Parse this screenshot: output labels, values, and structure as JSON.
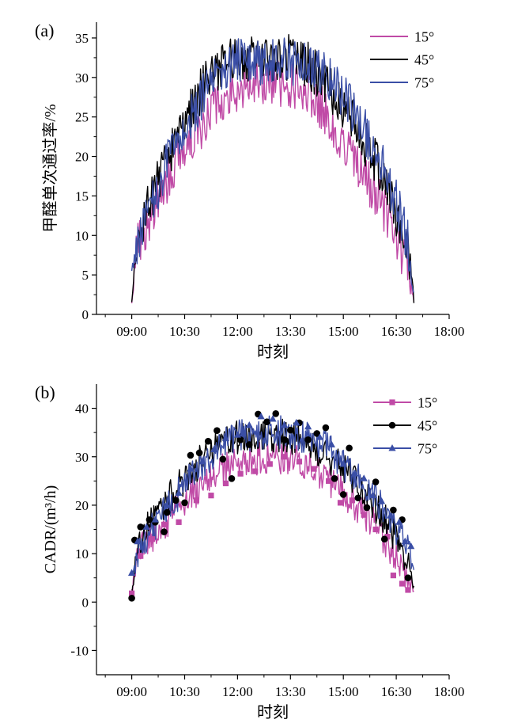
{
  "chart_data": [
    {
      "panel_label": "(a)",
      "type": "line",
      "xlabel": "时刻",
      "ylabel": "甲醛单次通过率/%",
      "xlim": [
        "08:00",
        "18:00"
      ],
      "ylim": [
        0,
        37
      ],
      "xticks": [
        "09:00",
        "10:30",
        "12:00",
        "13:30",
        "15:00",
        "16:30",
        "18:00"
      ],
      "yticks": [
        0,
        5,
        10,
        15,
        20,
        25,
        30,
        35
      ],
      "legend_position": "top-right",
      "grid": false,
      "series": [
        {
          "name": "15°",
          "color": "#c04aa6",
          "marker": "none",
          "noise": 3.0,
          "profile": [
            [
              "09:00",
              2
            ],
            [
              "09:10",
              9
            ],
            [
              "09:30",
              12
            ],
            [
              "10:00",
              17
            ],
            [
              "10:30",
              21
            ],
            [
              "11:00",
              24
            ],
            [
              "11:30",
              27.5
            ],
            [
              "12:00",
              28.5
            ],
            [
              "12:30",
              29.5
            ],
            [
              "13:00",
              29.5
            ],
            [
              "13:30",
              29
            ],
            [
              "14:00",
              28.5
            ],
            [
              "14:30",
              25.5
            ],
            [
              "15:00",
              22
            ],
            [
              "15:30",
              18.5
            ],
            [
              "16:00",
              14.5
            ],
            [
              "16:30",
              9.5
            ],
            [
              "16:50",
              5.5
            ],
            [
              "17:00",
              1.5
            ]
          ]
        },
        {
          "name": "45°",
          "color": "#000000",
          "marker": "none",
          "noise": 3.0,
          "profile": [
            [
              "09:00",
              1
            ],
            [
              "09:10",
              9
            ],
            [
              "09:30",
              14
            ],
            [
              "10:00",
              20
            ],
            [
              "10:30",
              24.5
            ],
            [
              "11:00",
              28.5
            ],
            [
              "11:30",
              31.5
            ],
            [
              "12:00",
              32.5
            ],
            [
              "12:30",
              32.5
            ],
            [
              "13:00",
              32.5
            ],
            [
              "13:30",
              32.5
            ],
            [
              "14:00",
              31.5
            ],
            [
              "14:30",
              29.5
            ],
            [
              "15:00",
              26.5
            ],
            [
              "15:30",
              22.5
            ],
            [
              "16:00",
              18.5
            ],
            [
              "16:30",
              12.5
            ],
            [
              "16:50",
              8
            ],
            [
              "17:00",
              1.5
            ]
          ]
        },
        {
          "name": "75°",
          "color": "#3a4ea6",
          "marker": "none",
          "noise": 3.0,
          "profile": [
            [
              "09:00",
              6
            ],
            [
              "09:10",
              9
            ],
            [
              "09:30",
              13
            ],
            [
              "10:00",
              19
            ],
            [
              "10:30",
              23.5
            ],
            [
              "11:00",
              27.5
            ],
            [
              "11:30",
              30.5
            ],
            [
              "12:00",
              32
            ],
            [
              "12:30",
              32
            ],
            [
              "13:00",
              32
            ],
            [
              "13:30",
              32
            ],
            [
              "14:00",
              31.5
            ],
            [
              "14:30",
              30.5
            ],
            [
              "15:00",
              27.5
            ],
            [
              "15:30",
              24
            ],
            [
              "16:00",
              20
            ],
            [
              "16:30",
              14.5
            ],
            [
              "16:50",
              9
            ],
            [
              "17:00",
              2
            ]
          ]
        }
      ]
    },
    {
      "panel_label": "(b)",
      "type": "line",
      "xlabel": "时刻",
      "ylabel": "CADR/(m³/h)",
      "xlim": [
        "08:00",
        "18:00"
      ],
      "ylim": [
        -15,
        45
      ],
      "xticks": [
        "09:00",
        "10:30",
        "12:00",
        "13:30",
        "15:00",
        "16:30",
        "18:00"
      ],
      "yticks": [
        -10,
        0,
        10,
        20,
        30,
        40
      ],
      "legend_position": "top-right",
      "grid": false,
      "series": [
        {
          "name": "15°",
          "color": "#c04aa6",
          "marker": "square",
          "noise": 3.5,
          "profile": [
            [
              "09:00",
              2
            ],
            [
              "09:10",
              10
            ],
            [
              "09:30",
              13
            ],
            [
              "10:00",
              16.5
            ],
            [
              "10:30",
              21
            ],
            [
              "11:00",
              24
            ],
            [
              "11:30",
              27
            ],
            [
              "12:00",
              28.5
            ],
            [
              "12:30",
              29.5
            ],
            [
              "13:00",
              30
            ],
            [
              "13:30",
              29.5
            ],
            [
              "14:00",
              28.5
            ],
            [
              "14:30",
              26
            ],
            [
              "15:00",
              22.5
            ],
            [
              "15:30",
              19
            ],
            [
              "16:00",
              15
            ],
            [
              "16:30",
              9.5
            ],
            [
              "16:50",
              5
            ],
            [
              "17:00",
              2
            ]
          ],
          "markers": [
            [
              "09:00",
              1.8
            ],
            [
              "09:15",
              9.5
            ],
            [
              "09:35",
              13
            ],
            [
              "09:55",
              16
            ],
            [
              "10:20",
              16.5
            ],
            [
              "10:50",
              21
            ],
            [
              "11:15",
              22
            ],
            [
              "11:40",
              24.5
            ],
            [
              "12:05",
              26.5
            ],
            [
              "12:30",
              27
            ],
            [
              "12:55",
              28.5
            ],
            [
              "13:20",
              30
            ],
            [
              "13:45",
              29
            ],
            [
              "14:10",
              27.5
            ],
            [
              "14:35",
              25
            ],
            [
              "14:55",
              20.5
            ],
            [
              "15:15",
              21
            ],
            [
              "15:35",
              18
            ],
            [
              "15:55",
              15
            ],
            [
              "16:15",
              13.5
            ],
            [
              "16:25",
              5.5
            ],
            [
              "16:40",
              3.8
            ],
            [
              "16:50",
              2.5
            ]
          ]
        },
        {
          "name": "45°",
          "color": "#000000",
          "marker": "circle",
          "noise": 3.5,
          "profile": [
            [
              "09:00",
              1
            ],
            [
              "09:10",
              11
            ],
            [
              "09:30",
              16
            ],
            [
              "10:00",
              21
            ],
            [
              "10:30",
              25.5
            ],
            [
              "11:00",
              29.5
            ],
            [
              "11:30",
              32.5
            ],
            [
              "12:00",
              34
            ],
            [
              "12:30",
              34.5
            ],
            [
              "13:00",
              34.5
            ],
            [
              "13:30",
              34
            ],
            [
              "14:00",
              33
            ],
            [
              "14:30",
              30.5
            ],
            [
              "15:00",
              27.5
            ],
            [
              "15:30",
              23.5
            ],
            [
              "16:00",
              19
            ],
            [
              "16:30",
              13.5
            ],
            [
              "16:50",
              8
            ],
            [
              "17:00",
              3
            ]
          ],
          "markers": [
            [
              "09:00",
              0.8
            ],
            [
              "09:05",
              12.8
            ],
            [
              "09:15",
              15.5
            ],
            [
              "09:30",
              17
            ],
            [
              "09:40",
              16.5
            ],
            [
              "09:55",
              14.5
            ],
            [
              "10:00",
              18.5
            ],
            [
              "10:15",
              21
            ],
            [
              "10:30",
              20.5
            ],
            [
              "10:40",
              30.3
            ],
            [
              "10:55",
              30.8
            ],
            [
              "11:10",
              33.2
            ],
            [
              "11:25",
              35.4
            ],
            [
              "11:35",
              29.5
            ],
            [
              "11:50",
              25.5
            ],
            [
              "12:05",
              33.5
            ],
            [
              "12:20",
              32.5
            ],
            [
              "12:35",
              38.8
            ],
            [
              "12:50",
              37.2
            ],
            [
              "13:05",
              38.9
            ],
            [
              "13:20",
              33.5
            ],
            [
              "13:30",
              35.5
            ],
            [
              "13:45",
              37
            ],
            [
              "14:00",
              33.5
            ],
            [
              "14:15",
              34.8
            ],
            [
              "14:30",
              36
            ],
            [
              "14:45",
              25.5
            ],
            [
              "15:00",
              22.2
            ],
            [
              "15:10",
              31.8
            ],
            [
              "15:25",
              21.5
            ],
            [
              "15:40",
              19.5
            ],
            [
              "15:55",
              24.8
            ],
            [
              "16:10",
              13
            ],
            [
              "16:25",
              19
            ],
            [
              "16:40",
              17
            ],
            [
              "16:50",
              5
            ]
          ]
        },
        {
          "name": "75°",
          "color": "#3a4ea6",
          "marker": "triangle",
          "noise": 3.5,
          "profile": [
            [
              "09:00",
              6
            ],
            [
              "09:10",
              10
            ],
            [
              "09:30",
              14.5
            ],
            [
              "10:00",
              19.5
            ],
            [
              "10:30",
              24
            ],
            [
              "11:00",
              28.5
            ],
            [
              "11:30",
              32
            ],
            [
              "12:00",
              34
            ],
            [
              "12:30",
              35
            ],
            [
              "13:00",
              35
            ],
            [
              "13:30",
              35
            ],
            [
              "14:00",
              34
            ],
            [
              "14:30",
              32
            ],
            [
              "15:00",
              28.5
            ],
            [
              "15:30",
              24.5
            ],
            [
              "16:00",
              20.5
            ],
            [
              "16:30",
              15
            ],
            [
              "16:50",
              11
            ],
            [
              "17:00",
              7
            ]
          ],
          "markers": [
            [
              "09:00",
              6
            ],
            [
              "09:10",
              12.5
            ],
            [
              "09:25",
              15.5
            ],
            [
              "09:40",
              17
            ],
            [
              "10:00",
              20
            ],
            [
              "10:20",
              22.5
            ],
            [
              "10:40",
              27.5
            ],
            [
              "11:00",
              29
            ],
            [
              "11:20",
              31.5
            ],
            [
              "11:40",
              33.8
            ],
            [
              "12:00",
              34.5
            ],
            [
              "12:20",
              36.5
            ],
            [
              "12:40",
              38.3
            ],
            [
              "13:00",
              37.8
            ],
            [
              "13:20",
              36.5
            ],
            [
              "13:40",
              37
            ],
            [
              "14:00",
              36.2
            ],
            [
              "14:20",
              34
            ],
            [
              "14:40",
              32.5
            ],
            [
              "15:00",
              28.5
            ],
            [
              "15:20",
              26.5
            ],
            [
              "15:35",
              25.5
            ],
            [
              "15:50",
              22
            ],
            [
              "16:05",
              20.8
            ],
            [
              "16:20",
              17.8
            ],
            [
              "16:35",
              16.5
            ],
            [
              "16:45",
              12.5
            ],
            [
              "16:55",
              11.5
            ]
          ]
        }
      ]
    }
  ]
}
